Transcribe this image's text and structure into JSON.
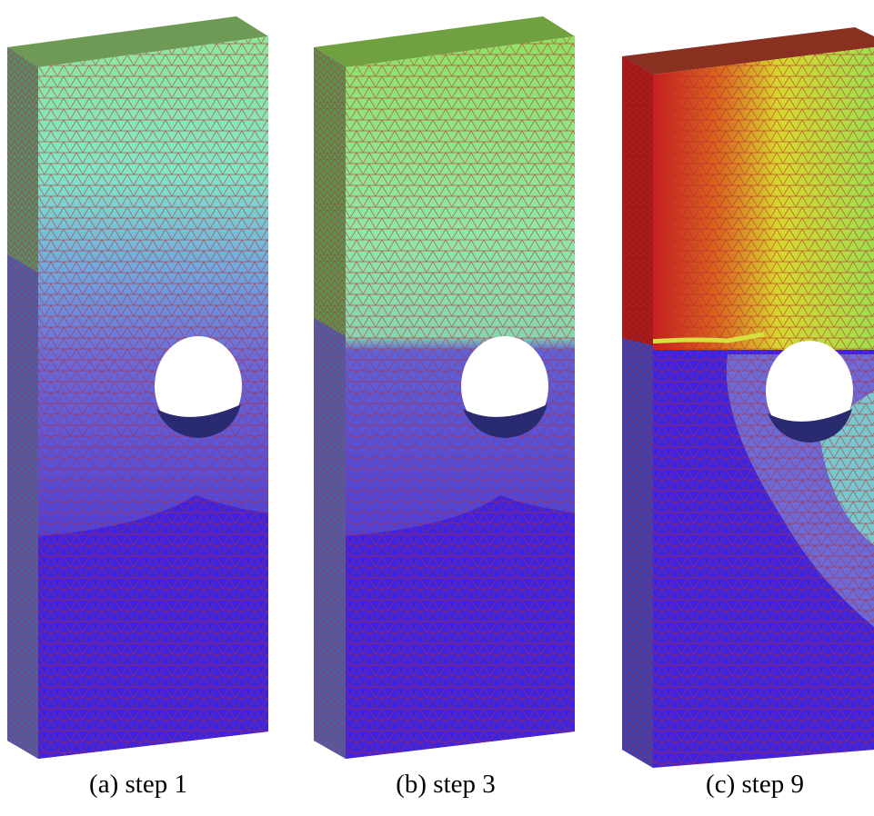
{
  "figure": {
    "panels": [
      {
        "caption": "(a) step 1"
      },
      {
        "caption": "(b) step 3"
      },
      {
        "caption": "(c) step 9"
      }
    ]
  }
}
